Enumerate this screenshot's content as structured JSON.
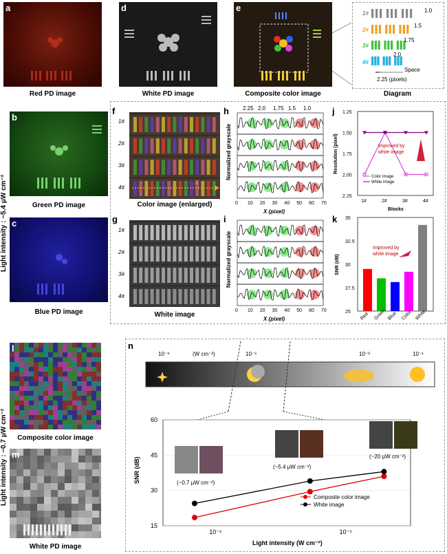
{
  "panels": {
    "a": {
      "letter": "a",
      "caption": "Red PD image"
    },
    "b": {
      "letter": "b",
      "caption": "Green PD image"
    },
    "c": {
      "letter": "c",
      "caption": "Blue PD image"
    },
    "d": {
      "letter": "d",
      "caption": "White PD image"
    },
    "e": {
      "letter": "e",
      "caption": "Composite color image"
    },
    "diagram": {
      "caption": "Diagram",
      "rows": [
        "1#",
        "2#",
        "3#",
        "4#"
      ],
      "row_colors": [
        "#888888",
        "#f0a020",
        "#40c040",
        "#20b0e0"
      ],
      "values": [
        "1.0",
        "1.5",
        "1.75",
        "2.0"
      ],
      "space_label": "Space",
      "pixels_label": "2.25 (pixels)"
    },
    "f": {
      "letter": "f",
      "caption": "Color image (enlarged)",
      "rows": [
        "1#",
        "2#",
        "3#",
        "4#"
      ],
      "x_marker": "X"
    },
    "g": {
      "letter": "g",
      "caption": "White image",
      "rows": [
        "1#",
        "2#",
        "3#",
        "4#"
      ]
    },
    "h": {
      "letter": "h",
      "top_ticks": [
        "2.25",
        "2.0",
        "1.75",
        "1.5",
        "1.0"
      ]
    },
    "i": {
      "letter": "i"
    },
    "j": {
      "letter": "j"
    },
    "k": {
      "letter": "k"
    },
    "l": {
      "letter": "l",
      "caption": "Composite color image"
    },
    "m": {
      "letter": "m",
      "caption": "White PD image"
    },
    "n": {
      "letter": "n"
    }
  },
  "side_labels": {
    "top": "Light intensity : ~5.4 μW cm⁻²",
    "bottom": "Light intensity : ~0.7 μW cm⁻²"
  },
  "profile_axes": {
    "ylabel": "Normalized grayscale",
    "xlabel": "X (pixel)",
    "xticks": [
      "0",
      "10",
      "20",
      "30",
      "40",
      "50",
      "60",
      "70"
    ]
  },
  "intensity_bar": {
    "ticks": [
      "10⁻⁹",
      "(W cm⁻²)",
      "10⁻⁶",
      "10⁻³",
      "10⁻¹"
    ]
  },
  "chart_data": [
    {
      "id": "j",
      "type": "line",
      "categories": [
        "1#",
        "2#",
        "3#",
        "4#"
      ],
      "series": [
        {
          "name": "Color image",
          "values": [
            2.0,
            1.5,
            2.0,
            2.0
          ],
          "color": "#e040e0"
        },
        {
          "name": "White image",
          "values": [
            1.5,
            1.5,
            1.5,
            1.5
          ],
          "color": "#800080"
        }
      ],
      "xlabel": "Blocks",
      "ylabel": "Resolution (pixel)",
      "ylim": [
        2.25,
        1.25
      ],
      "yticks": [
        "1.25",
        "1.50",
        "1.75",
        "2.00",
        "2.25"
      ],
      "annotation": "Improved by white image"
    },
    {
      "id": "k",
      "type": "bar",
      "categories": [
        "Red",
        "Green",
        "Blue",
        "Color",
        "White"
      ],
      "values": [
        29.5,
        28.5,
        28.1,
        29.2,
        34.2
      ],
      "colors": [
        "#ff0000",
        "#00c000",
        "#0000ff",
        "#ff00ff",
        "#808080"
      ],
      "ylabel": "SNR (dB)",
      "ylim": [
        25,
        35
      ],
      "yticks": [
        "25",
        "27.5",
        "30",
        "32.5",
        "35"
      ],
      "annotation": "Improved by white image"
    },
    {
      "id": "n",
      "type": "line",
      "x": [
        7e-07,
        5.4e-06,
        2e-05
      ],
      "series": [
        {
          "name": "Composite color image",
          "values": [
            18.5,
            29.5,
            36
          ],
          "color": "#e00000"
        },
        {
          "name": "White image",
          "values": [
            24.5,
            34,
            38
          ],
          "color": "#000000"
        }
      ],
      "xlabel": "Light intensity (W cm⁻²)",
      "ylabel": "SNR (dB)",
      "ylim": [
        15,
        60
      ],
      "yticks": [
        "15",
        "30",
        "45",
        "60"
      ],
      "xticks": [
        "10⁻⁶",
        "10⁻⁵"
      ],
      "xscale": "log",
      "point_labels": [
        "(~0.7 μW cm⁻²)",
        "(~5.4 μW cm⁻²)",
        "(~20 μW cm⁻²)"
      ]
    }
  ]
}
